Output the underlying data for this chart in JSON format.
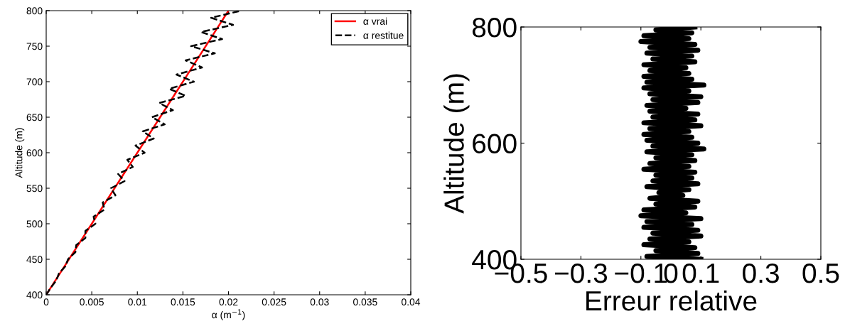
{
  "chart_data": [
    {
      "type": "line",
      "xlabel": "α (m$^{−1}$)",
      "ylabel": "Altitude (m)",
      "xlim": [
        0,
        0.04
      ],
      "ylim": [
        400,
        800
      ],
      "xticks": [
        0,
        0.005,
        0.01,
        0.015,
        0.02,
        0.025,
        0.03,
        0.035,
        0.04
      ],
      "yticks": [
        400,
        450,
        500,
        550,
        600,
        650,
        700,
        750,
        800
      ],
      "grid": false,
      "legend": "top right",
      "marker": "none",
      "series": [
        {
          "name": "α vrai",
          "color": "#ff0000",
          "line_style": "solid",
          "x": [
            0,
            0.02
          ],
          "values": [
            400,
            800
          ]
        },
        {
          "name": "α restitue",
          "color": "#000000",
          "line_style": "dashed",
          "x": [
            0,
            0.0005,
            0.0011,
            0.0014,
            0.0021,
            0.0024,
            0.0032,
            0.0033,
            0.0043,
            0.0043,
            0.0054,
            0.0052,
            0.0064,
            0.0062,
            0.0076,
            0.0071,
            0.0086,
            0.0079,
            0.0095,
            0.0089,
            0.0108,
            0.0098,
            0.0118,
            0.0106,
            0.013,
            0.0116,
            0.0139,
            0.0124,
            0.0153,
            0.0135,
            0.0162,
            0.0143,
            0.0171,
            0.0153,
            0.0185,
            0.0159,
            0.0193,
            0.017,
            0.0205,
            0.0181,
            0.0214
          ],
          "values": [
            400,
            410,
            420,
            430,
            440,
            450,
            460,
            470,
            480,
            490,
            500,
            510,
            520,
            530,
            540,
            550,
            560,
            570,
            580,
            590,
            600,
            610,
            620,
            630,
            640,
            650,
            660,
            670,
            680,
            690,
            700,
            710,
            720,
            730,
            740,
            750,
            760,
            770,
            780,
            790,
            800
          ]
        }
      ]
    },
    {
      "type": "line",
      "xlabel": "Erreur relative",
      "ylabel": "Altitude (m)",
      "xlim": [
        -0.5,
        0.5
      ],
      "ylim": [
        400,
        800
      ],
      "xticks": [
        {
          "value": -0.5,
          "label": "−0.5"
        },
        {
          "value": -0.3,
          "label": "−0.3"
        },
        {
          "value": -0.1,
          "label": "−0.1"
        },
        0,
        0.1,
        0.3,
        0.5
      ],
      "yticks": [
        400,
        600,
        800
      ],
      "grid": false,
      "legend": false,
      "marker": "none",
      "series": [
        {
          "color": "#000000",
          "line_style": "solid",
          "x": [
            0.1,
            -0.08,
            0.09,
            -0.05,
            0.08,
            -0.09,
            0.06,
            -0.07,
            0.1,
            -0.06,
            0.09,
            -0.09,
            0.07,
            -0.08,
            0.1,
            -0.1,
            0.05,
            -0.09,
            0.08,
            -0.05,
            0.09,
            -0.07,
            0.04,
            -0.04,
            0.06,
            -0.08,
            0.09,
            -0.06,
            0.07,
            -0.05,
            0.08,
            -0.09,
            0.06,
            -0.07,
            0.08,
            -0.05,
            0.07,
            -0.08,
            0.11,
            -0.06,
            0.09,
            -0.08,
            0.07,
            -0.09,
            0.06,
            -0.07,
            0.1,
            -0.09,
            0.08,
            -0.06,
            0.09,
            -0.07,
            0.05,
            -0.08,
            0.09,
            -0.06,
            0.1,
            -0.07,
            0.06,
            -0.09,
            0.11,
            -0.08,
            0.07,
            -0.09,
            0.06,
            -0.07,
            0.05,
            -0.09,
            0.08,
            -0.06,
            0.07,
            -0.08,
            0.09,
            -0.07,
            0.08,
            -0.1,
            0.06,
            -0.09,
            0.07,
            -0.05,
            0.08
          ],
          "values": [
            400,
            405,
            410,
            415,
            420,
            425,
            430,
            435,
            440,
            445,
            450,
            455,
            460,
            465,
            470,
            475,
            480,
            485,
            490,
            495,
            500,
            505,
            510,
            515,
            520,
            525,
            530,
            535,
            540,
            545,
            550,
            555,
            560,
            565,
            570,
            575,
            580,
            585,
            590,
            595,
            600,
            605,
            610,
            615,
            620,
            625,
            630,
            635,
            640,
            645,
            650,
            655,
            660,
            665,
            670,
            675,
            680,
            685,
            690,
            695,
            700,
            705,
            710,
            715,
            720,
            725,
            730,
            735,
            740,
            745,
            750,
            755,
            760,
            765,
            770,
            775,
            780,
            785,
            790,
            795,
            800
          ]
        }
      ]
    }
  ]
}
